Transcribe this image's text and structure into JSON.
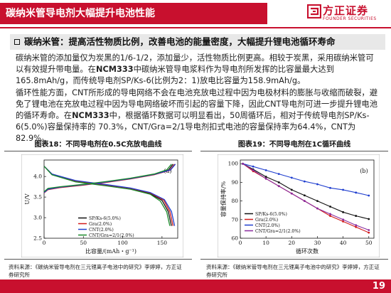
{
  "header": {
    "title": "碳纳米管导电剂大幅提升电池性能",
    "brand_name": "方正证券",
    "brand_en": "FOUNDER SECURITIES"
  },
  "subtitle": "碳纳米管：提高活性物质比例，改善电池的能量密度，大幅提升锂电池循环寿命",
  "paragraph1": {
    "p1": "碳纳米管的添加量仅为炭黑的1/6-1/2，添加量少，活性物质比例更高。相较于炭黑，采用碳纳米管可以有效提升带电量。在",
    "ncm1": "NCM333",
    "p2": "中碳纳米管导电浆料作为导电剂所发挥的比容量最大达到165.8mAh/g，而传统导电剂SP/Ks-6(比例为2：1)放电比容量为158.9mAh/g。"
  },
  "paragraph2": {
    "p1": "循环性能方面，CNT所形成的导电网络不会在电池充放电过程中因为电极材料的膨胀与收缩而破裂，避免了锂电池在充放电过程中因为导电网络破坏而引起的容量下降，因此CNT导电剂可进一步提升锂电池的循环寿命。在",
    "ncm2": "NCM333",
    "p2": "中，根据循环数据可以明显看出，50周循环后，相对于传统导电剂SP/Ks-6(5.0%)容量保持率的 70.3%，CNT/Gra=2/1导电剂扣式电池的容量保持率为64.4%，CNT为82.9%。"
  },
  "figure18": {
    "caption": "图表18：不同导电剂在0.5C充放电曲线",
    "source": "资料来源：《碳纳米管导电剂在三元锂离子电池中的研究》李婷婷，方正证券研究所",
    "chart_data": {
      "type": "line",
      "panel_label": "(a)",
      "xlabel": "比容量/(mAh・g⁻¹)",
      "ylabel": "U/V",
      "xlim": [
        0,
        170
      ],
      "ylim": [
        2.5,
        4.4
      ],
      "x_ticks": [
        0,
        50,
        100,
        150
      ],
      "y_ticks": [
        2.5,
        3.0,
        3.5,
        4.0
      ],
      "series": [
        {
          "name": "SP/Ks-6(5.0%)",
          "color": "#111111",
          "charge": [
            [
              0,
              3.62
            ],
            [
              5,
              3.7
            ],
            [
              20,
              3.74
            ],
            [
              50,
              3.8
            ],
            [
              80,
              3.87
            ],
            [
              110,
              3.95
            ],
            [
              140,
              4.05
            ],
            [
              158,
              4.15
            ],
            [
              164,
              4.3
            ]
          ],
          "discharge": [
            [
              0,
              4.25
            ],
            [
              10,
              4.05
            ],
            [
              40,
              3.88
            ],
            [
              80,
              3.78
            ],
            [
              110,
              3.7
            ],
            [
              135,
              3.58
            ],
            [
              150,
              3.42
            ],
            [
              158,
              3.15
            ],
            [
              162,
              2.8
            ]
          ]
        },
        {
          "name": "Gra(2.0%)",
          "color": "#d11a1a",
          "charge": [
            [
              0,
              3.6
            ],
            [
              5,
              3.68
            ],
            [
              20,
              3.73
            ],
            [
              50,
              3.79
            ],
            [
              80,
              3.86
            ],
            [
              110,
              3.94
            ],
            [
              140,
              4.04
            ],
            [
              160,
              4.15
            ],
            [
              166,
              4.3
            ]
          ],
          "discharge": [
            [
              0,
              4.25
            ],
            [
              10,
              4.06
            ],
            [
              40,
              3.89
            ],
            [
              80,
              3.79
            ],
            [
              110,
              3.71
            ],
            [
              135,
              3.6
            ],
            [
              152,
              3.43
            ],
            [
              160,
              3.15
            ],
            [
              164,
              2.8
            ]
          ]
        },
        {
          "name": "CNT(2.0%)",
          "color": "#1f3ecf",
          "charge": [
            [
              0,
              3.61
            ],
            [
              5,
              3.69
            ],
            [
              20,
              3.74
            ],
            [
              50,
              3.8
            ],
            [
              80,
              3.87
            ],
            [
              110,
              3.95
            ],
            [
              140,
              4.05
            ],
            [
              161,
              4.16
            ],
            [
              167,
              4.3
            ]
          ],
          "discharge": [
            [
              0,
              4.25
            ],
            [
              10,
              4.06
            ],
            [
              40,
              3.9
            ],
            [
              80,
              3.8
            ],
            [
              110,
              3.72
            ],
            [
              135,
              3.61
            ],
            [
              153,
              3.44
            ],
            [
              162,
              3.15
            ],
            [
              166,
              2.8
            ]
          ]
        },
        {
          "name": "CNT/Gra=2/1(2.0%)",
          "color": "#1a8a2a",
          "charge": [
            [
              0,
              3.63
            ],
            [
              5,
              3.71
            ],
            [
              20,
              3.75
            ],
            [
              50,
              3.81
            ],
            [
              80,
              3.88
            ],
            [
              110,
              3.96
            ],
            [
              140,
              4.06
            ],
            [
              156,
              4.16
            ],
            [
              162,
              4.3
            ]
          ],
          "discharge": [
            [
              0,
              4.25
            ],
            [
              10,
              4.04
            ],
            [
              40,
              3.87
            ],
            [
              80,
              3.77
            ],
            [
              110,
              3.69
            ],
            [
              135,
              3.57
            ],
            [
              148,
              3.4
            ],
            [
              156,
              3.14
            ],
            [
              160,
              2.8
            ]
          ]
        }
      ]
    }
  },
  "figure19": {
    "caption": "图表19：不同导电剂在1C循环曲线",
    "source": "资料来源：《碳纳米管导电剂在三元锂离子电池中的研究》李婷婷，方正证券研究所",
    "chart_data": {
      "type": "line",
      "panel_label": "(b)",
      "xlabel": "循环次数",
      "ylabel": "容量保持率/%",
      "xlim": [
        0,
        52
      ],
      "ylim": [
        60,
        102
      ],
      "x_ticks": [
        0,
        10,
        20,
        30,
        40,
        50
      ],
      "y_ticks": [
        60,
        70,
        80,
        90,
        100
      ],
      "series": [
        {
          "name": "SP/Ks-6(5.0%)",
          "color": "#111111",
          "x": [
            1,
            5,
            10,
            15,
            20,
            25,
            30,
            35,
            40,
            45,
            50
          ],
          "y": [
            100,
            97,
            93,
            90,
            86,
            83,
            80,
            77,
            74,
            72,
            70.3
          ]
        },
        {
          "name": "Gra(2.0%)",
          "color": "#d11a1a",
          "x": [
            1,
            5,
            10,
            15,
            20,
            25,
            30,
            35,
            40,
            45,
            50
          ],
          "y": [
            100,
            96,
            92,
            88,
            84,
            80,
            76,
            72,
            69,
            66,
            63
          ]
        },
        {
          "name": "CNT(2.0%)",
          "color": "#1f3ecf",
          "x": [
            1,
            5,
            10,
            15,
            20,
            25,
            30,
            35,
            40,
            45,
            50
          ],
          "y": [
            100,
            98.5,
            96.5,
            94.5,
            92.5,
            90.5,
            89,
            87,
            86,
            84.5,
            82.9
          ]
        },
        {
          "name": "CNT/Gra=2/1(2.0%)",
          "color": "#8a2b9e",
          "x": [
            1,
            5,
            10,
            15,
            20,
            25,
            30,
            35,
            40,
            45,
            50
          ],
          "y": [
            100,
            96.5,
            92,
            88,
            84,
            80,
            76,
            73,
            70,
            67,
            64.4
          ]
        }
      ]
    }
  },
  "footer": {
    "page_number": "19"
  },
  "colors": {
    "accent": "#c8102e",
    "subtitle_bg": "#e8e8e8"
  }
}
